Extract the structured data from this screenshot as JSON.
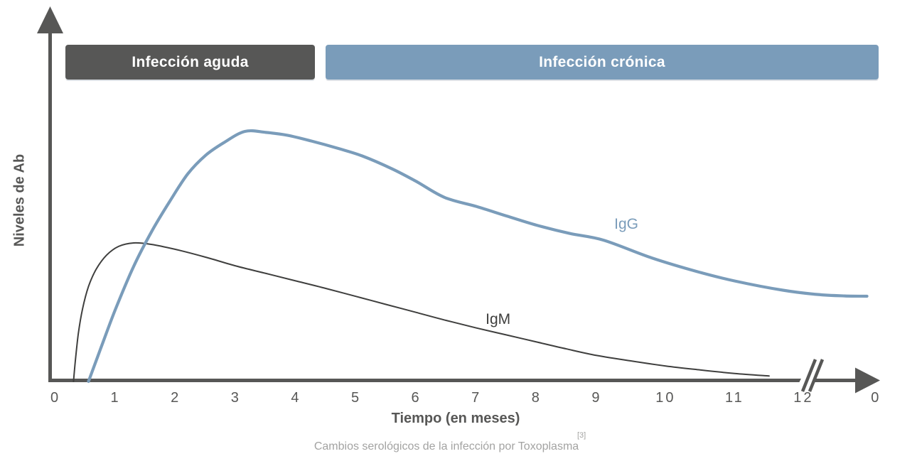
{
  "figure": {
    "y_axis_label": "Niveles de Ab",
    "x_axis_label": "Tiempo (en meses)",
    "caption_text": "Cambios serológicos de la infección por Toxoplasma",
    "caption_reference": "[3]"
  },
  "colors": {
    "axis_dark": "#575756",
    "phase_acute": "#575756",
    "phase_chronic": "#7A9CBA",
    "igg_blue": "#7A9CBA",
    "igm_dark": "#3F3F3E",
    "caption_gray": "#A3A3A2",
    "background": "#FFFFFF"
  },
  "chart_data": {
    "type": "line",
    "title": "Cambios serológicos de la infección por Toxoplasma",
    "xlabel": "Tiempo (en meses)",
    "ylabel": "Niveles de Ab",
    "x_unit": "meses",
    "ylim": [
      0,
      1.1
    ],
    "grid": false,
    "legend_position": "inline-curve-labels",
    "x_ticks": [
      {
        "label": "0",
        "month": 0
      },
      {
        "label": "1",
        "month": 1
      },
      {
        "label": "2",
        "month": 2
      },
      {
        "label": "3",
        "month": 3
      },
      {
        "label": "4",
        "month": 4
      },
      {
        "label": "5",
        "month": 5
      },
      {
        "label": "6",
        "month": 6
      },
      {
        "label": "7",
        "month": 7
      },
      {
        "label": "8",
        "month": 8
      },
      {
        "label": "9",
        "month": 9
      },
      {
        "label": "10",
        "month": 10
      },
      {
        "label": "11",
        "month": 11
      },
      {
        "label": "12",
        "month": 12
      },
      {
        "label": "0",
        "month": 13.05
      }
    ],
    "axis_break": {
      "month": 12.15
    },
    "phases": [
      {
        "name": "Infección aguda",
        "start_month": 0.17,
        "end_month": 4.31,
        "color": "#575756"
      },
      {
        "name": "Infección crónica",
        "start_month": 4.49,
        "end_month": 13.09,
        "color": "#7A9CBA"
      }
    ],
    "series": [
      {
        "name": "IgM",
        "color": "#3F3F3E",
        "stroke_width": 2,
        "label_month": 7.36,
        "label_level": 0.25,
        "points": [
          [
            0.3,
            0
          ],
          [
            0.33,
            0.08
          ],
          [
            0.38,
            0.19
          ],
          [
            0.45,
            0.29
          ],
          [
            0.55,
            0.38
          ],
          [
            0.68,
            0.45
          ],
          [
            0.85,
            0.505
          ],
          [
            1.05,
            0.54
          ],
          [
            1.3,
            0.554
          ],
          [
            1.6,
            0.548
          ],
          [
            2.0,
            0.528
          ],
          [
            2.5,
            0.497
          ],
          [
            3.0,
            0.462
          ],
          [
            3.5,
            0.432
          ],
          [
            4.0,
            0.402
          ],
          [
            4.5,
            0.372
          ],
          [
            5.0,
            0.34
          ],
          [
            5.5,
            0.308
          ],
          [
            6.0,
            0.276
          ],
          [
            6.5,
            0.244
          ],
          [
            7.0,
            0.214
          ],
          [
            7.5,
            0.186
          ],
          [
            8.0,
            0.158
          ],
          [
            8.5,
            0.13
          ],
          [
            9.0,
            0.104
          ],
          [
            9.5,
            0.082
          ],
          [
            10.0,
            0.062
          ],
          [
            10.5,
            0.046
          ],
          [
            11.0,
            0.032
          ],
          [
            11.5,
            0.022
          ]
        ]
      },
      {
        "name": "IgG",
        "color": "#7A9CBA",
        "stroke_width": 4.2,
        "label_month": 9.43,
        "label_level": 0.63,
        "points": [
          [
            0.55,
            0
          ],
          [
            0.75,
            0.13
          ],
          [
            1.0,
            0.29
          ],
          [
            1.3,
            0.46
          ],
          [
            1.6,
            0.6
          ],
          [
            1.9,
            0.72
          ],
          [
            2.2,
            0.83
          ],
          [
            2.5,
            0.905
          ],
          [
            2.8,
            0.955
          ],
          [
            3.15,
            1.0
          ],
          [
            3.5,
            0.996
          ],
          [
            3.85,
            0.985
          ],
          [
            4.25,
            0.962
          ],
          [
            4.7,
            0.932
          ],
          [
            5.1,
            0.902
          ],
          [
            5.6,
            0.85
          ],
          [
            6.0,
            0.8
          ],
          [
            6.47,
            0.736
          ],
          [
            7.0,
            0.7
          ],
          [
            7.5,
            0.662
          ],
          [
            8.0,
            0.625
          ],
          [
            8.55,
            0.592
          ],
          [
            9.1,
            0.565
          ],
          [
            9.8,
            0.494
          ],
          [
            10.45,
            0.44
          ],
          [
            11.0,
            0.402
          ],
          [
            11.7,
            0.365
          ],
          [
            12.2,
            0.348
          ],
          [
            12.6,
            0.342
          ],
          [
            12.92,
            0.341
          ]
        ]
      }
    ]
  }
}
